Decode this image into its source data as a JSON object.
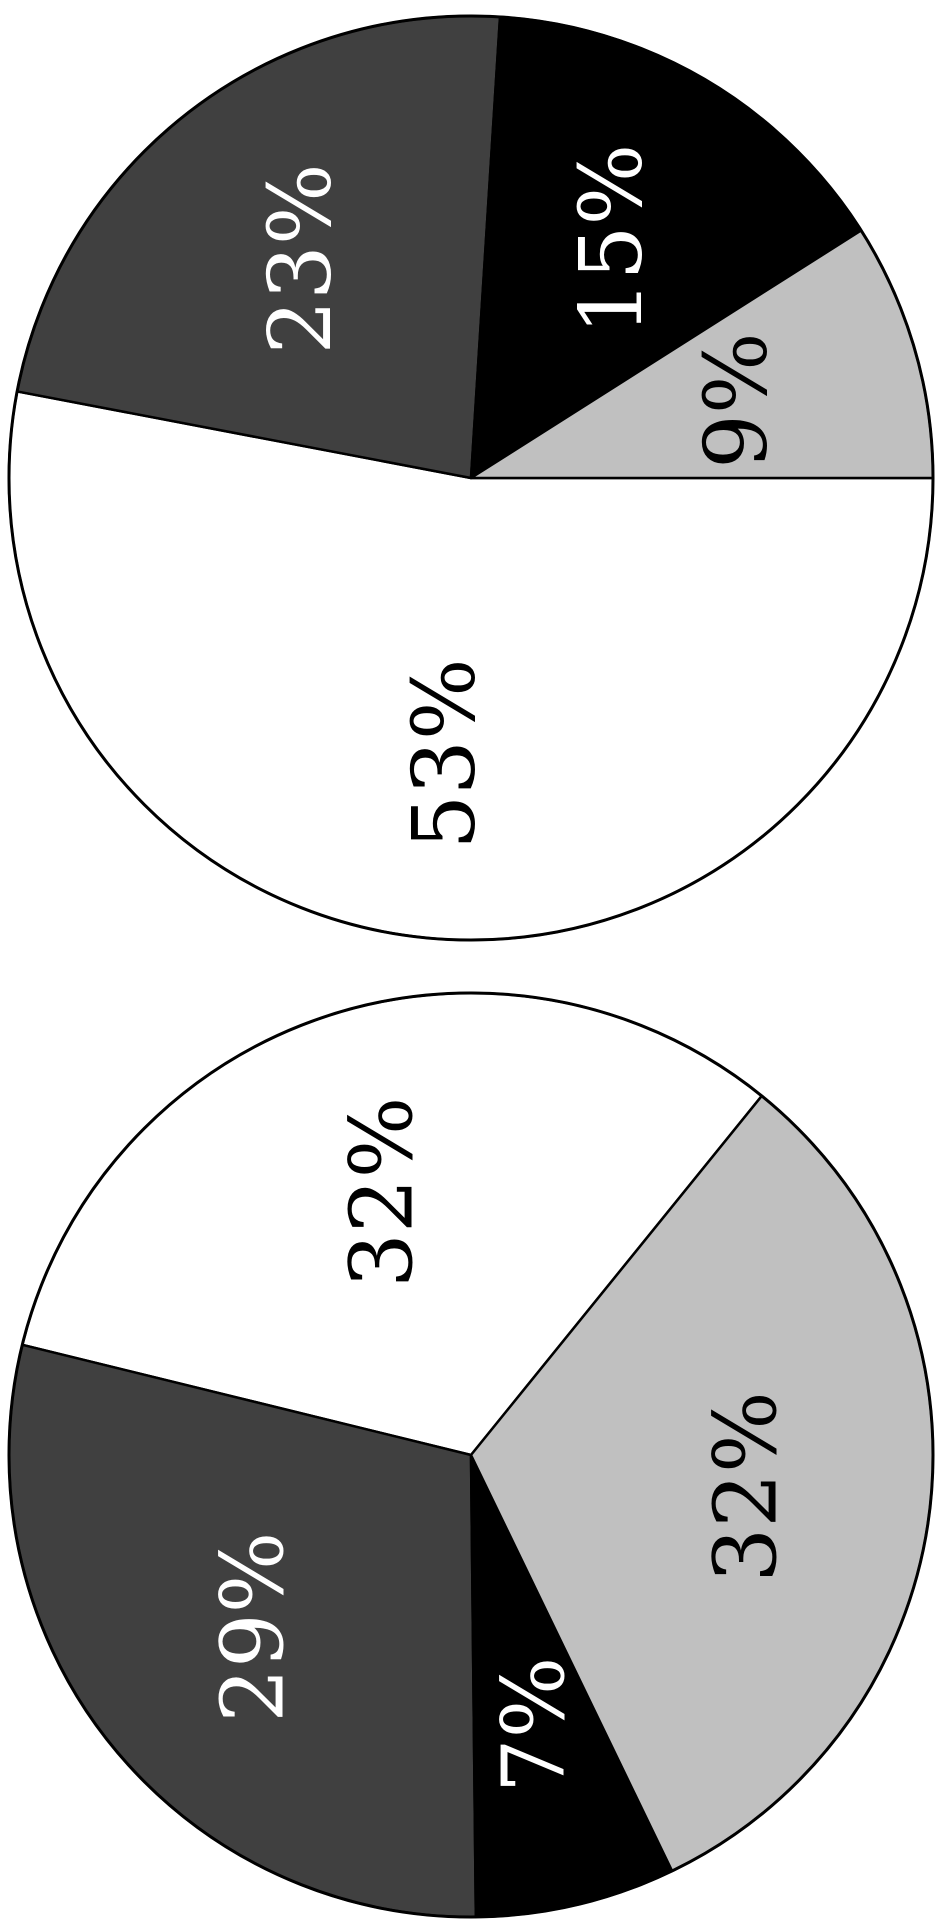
{
  "chart_data": [
    {
      "type": "pie",
      "orientation": "rotated 90° counter-clockwise",
      "colors": [
        "#ffffff",
        "#404040",
        "#000000",
        "#c0c0c0"
      ],
      "slices": [
        {
          "label": "53%",
          "value": 53,
          "color": "#ffffff",
          "text_color": "#000000"
        },
        {
          "label": "23%",
          "value": 23,
          "color": "#404040",
          "text_color": "#ffffff"
        },
        {
          "label": "15%",
          "value": 15,
          "color": "#000000",
          "text_color": "#ffffff"
        },
        {
          "label": "9%",
          "value": 9,
          "color": "#c0c0c0",
          "text_color": "#000000"
        }
      ]
    },
    {
      "type": "pie",
      "orientation": "rotated 90° counter-clockwise",
      "colors": [
        "#ffffff",
        "#404040",
        "#000000",
        "#c0c0c0"
      ],
      "slices": [
        {
          "label": "32%",
          "value": 32,
          "color": "#ffffff",
          "text_color": "#000000"
        },
        {
          "label": "29%",
          "value": 29,
          "color": "#404040",
          "text_color": "#ffffff"
        },
        {
          "label": "7%",
          "value": 7,
          "color": "#000000",
          "text_color": "#ffffff"
        },
        {
          "label": "32%",
          "value": 32,
          "color": "#c0c0c0",
          "text_color": "#000000"
        }
      ]
    }
  ]
}
